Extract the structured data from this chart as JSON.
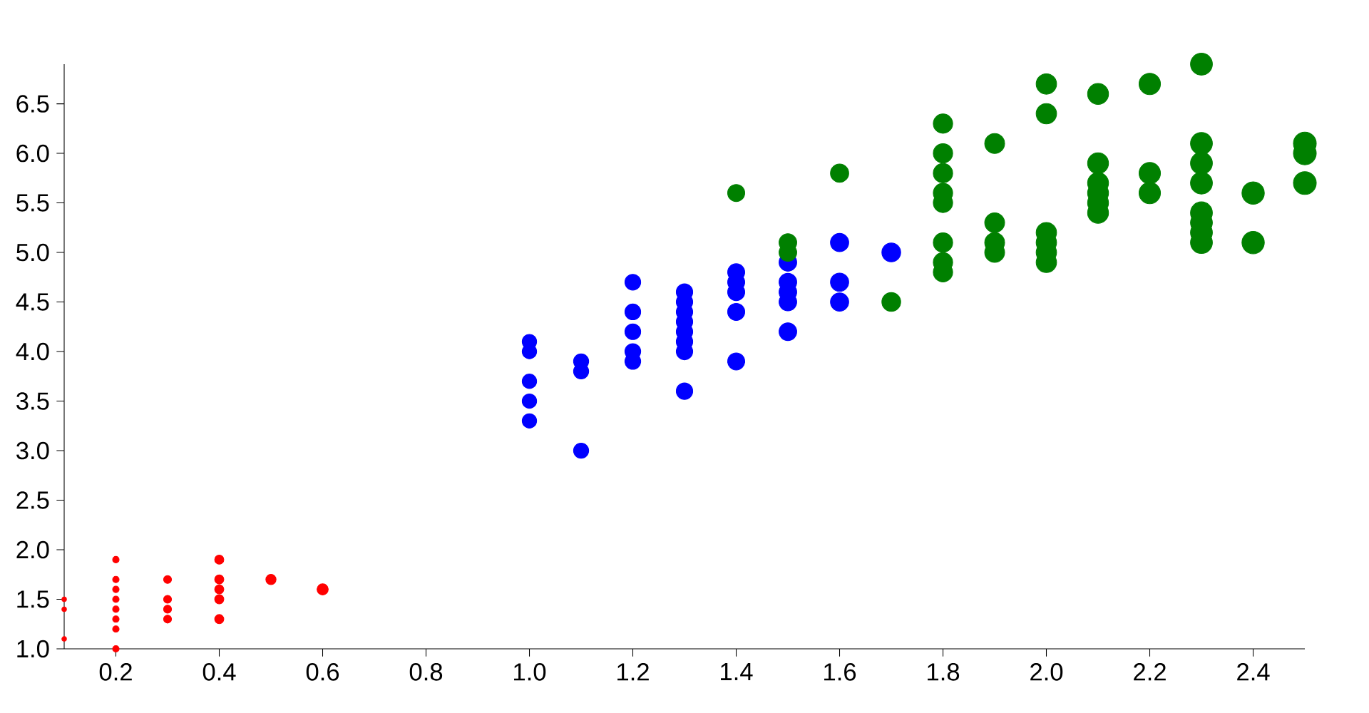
{
  "chart_data": {
    "type": "bubble",
    "xlim": [
      0.1,
      2.5
    ],
    "ylim": [
      1.0,
      6.9
    ],
    "xticks": [
      0.2,
      0.4,
      0.6,
      0.8,
      {
        "value": 1,
        "label": "1.0"
      },
      1.2,
      1.4,
      1.6,
      1.8,
      {
        "value": 2,
        "label": "2.0"
      },
      2.2,
      2.4
    ],
    "yticks": [
      {
        "value": 1,
        "label": "1.0"
      },
      1.5,
      {
        "value": 2,
        "label": "2.0"
      },
      2.5,
      {
        "value": 3,
        "label": "3.0"
      },
      3.5,
      {
        "value": 4,
        "label": "4.0"
      },
      4.5,
      {
        "value": 5,
        "label": "5.0"
      },
      5.5,
      {
        "value": 6,
        "label": "6.0"
      },
      6.5
    ],
    "series": [
      {
        "color": "#ff0000",
        "x": [
          0.1,
          0.1,
          0.1,
          0.2,
          0.2,
          0.2,
          0.2,
          0.2,
          0.2,
          0.2,
          0.2,
          0.3,
          0.3,
          0.3,
          0.3,
          0.4,
          0.4,
          0.4,
          0.4,
          0.4,
          0.5,
          0.6
        ],
        "values": [
          1.1,
          1.4,
          1.5,
          1.0,
          1.2,
          1.3,
          1.4,
          1.5,
          1.6,
          1.7,
          1.9,
          1.3,
          1.4,
          1.5,
          1.7,
          1.3,
          1.5,
          1.6,
          1.7,
          1.9,
          1.7,
          1.6
        ],
        "sizes": [
          0.04,
          0.04,
          0.04,
          0.08,
          0.08,
          0.08,
          0.08,
          0.08,
          0.08,
          0.08,
          0.08,
          0.12,
          0.12,
          0.12,
          0.12,
          0.16,
          0.16,
          0.16,
          0.16,
          0.16,
          0.2,
          0.24
        ]
      },
      {
        "color": "#0000ff",
        "x": [
          1.0,
          1.0,
          1.0,
          1.0,
          1.0,
          1.1,
          1.1,
          1.1,
          1.2,
          1.2,
          1.2,
          1.2,
          1.2,
          1.3,
          1.3,
          1.3,
          1.3,
          1.3,
          1.3,
          1.3,
          1.3,
          1.4,
          1.4,
          1.4,
          1.4,
          1.4,
          1.5,
          1.5,
          1.5,
          1.5,
          1.5,
          1.6,
          1.6,
          1.6,
          1.7
        ],
        "values": [
          3.3,
          3.5,
          3.7,
          4.0,
          4.1,
          3.0,
          3.8,
          3.9,
          3.9,
          4.0,
          4.2,
          4.4,
          4.7,
          3.6,
          4.0,
          4.1,
          4.2,
          4.3,
          4.4,
          4.5,
          4.6,
          3.9,
          4.4,
          4.6,
          4.7,
          4.8,
          4.2,
          4.5,
          4.6,
          4.7,
          4.9,
          4.5,
          4.7,
          5.1,
          5.0
        ],
        "sizes": [
          0.4,
          0.4,
          0.4,
          0.4,
          0.4,
          0.44,
          0.44,
          0.44,
          0.48,
          0.48,
          0.48,
          0.48,
          0.48,
          0.52,
          0.52,
          0.52,
          0.52,
          0.52,
          0.52,
          0.52,
          0.52,
          0.56,
          0.56,
          0.56,
          0.56,
          0.56,
          0.6,
          0.6,
          0.6,
          0.6,
          0.6,
          0.64,
          0.64,
          0.64,
          0.68
        ]
      },
      {
        "color": "#008000",
        "x": [
          1.4,
          1.5,
          1.5,
          1.6,
          1.7,
          1.8,
          1.8,
          1.8,
          1.8,
          1.8,
          1.8,
          1.8,
          1.8,
          1.9,
          1.9,
          1.9,
          1.9,
          2.0,
          2.0,
          2.0,
          2.0,
          2.0,
          2.0,
          2.1,
          2.1,
          2.1,
          2.1,
          2.1,
          2.1,
          2.2,
          2.2,
          2.2,
          2.3,
          2.3,
          2.3,
          2.3,
          2.3,
          2.3,
          2.3,
          2.3,
          2.4,
          2.4,
          2.5,
          2.5,
          2.5
        ],
        "values": [
          5.6,
          5.0,
          5.1,
          5.8,
          4.5,
          4.8,
          4.9,
          5.1,
          5.5,
          5.6,
          5.8,
          6.0,
          6.3,
          5.0,
          5.1,
          5.3,
          6.1,
          4.9,
          5.0,
          5.1,
          5.2,
          6.4,
          6.7,
          5.4,
          5.5,
          5.6,
          5.7,
          5.9,
          6.6,
          5.6,
          5.8,
          6.7,
          5.1,
          5.2,
          5.3,
          5.4,
          5.7,
          5.9,
          6.1,
          6.9,
          5.1,
          5.6,
          5.7,
          6.0,
          6.1
        ],
        "sizes": [
          0.56,
          0.6,
          0.6,
          0.64,
          0.68,
          0.72,
          0.72,
          0.72,
          0.72,
          0.72,
          0.72,
          0.72,
          0.72,
          0.76,
          0.76,
          0.76,
          0.76,
          0.8,
          0.8,
          0.8,
          0.8,
          0.8,
          0.8,
          0.84,
          0.84,
          0.84,
          0.84,
          0.84,
          0.84,
          0.88,
          0.88,
          0.88,
          0.92,
          0.92,
          0.92,
          0.92,
          0.92,
          0.92,
          0.92,
          0.92,
          0.96,
          0.96,
          1,
          1,
          1
        ]
      }
    ]
  }
}
